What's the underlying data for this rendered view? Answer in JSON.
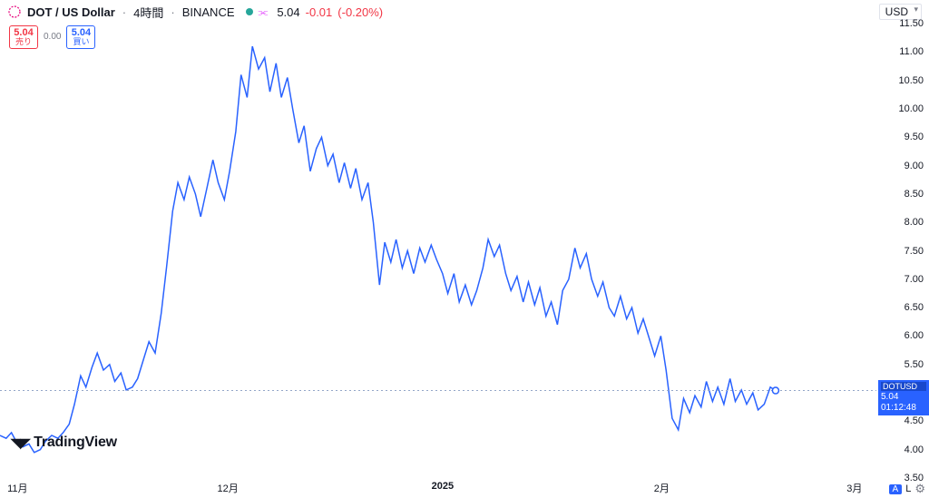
{
  "header": {
    "symbol_title": "DOT / US Dollar",
    "interval": "4時間",
    "exchange": "BINANCE",
    "status_dot_color": "#26a69a",
    "last": "5.04",
    "change": "-0.01",
    "change_pct": "(-0.20%)",
    "currency": "USD"
  },
  "badges": {
    "sell_price": "5.04",
    "sell_label": "売り",
    "spread": "0.00",
    "buy_price": "5.04",
    "buy_label": "買い"
  },
  "chart": {
    "type": "line",
    "line_color": "#2962ff",
    "background_color": "#ffffff",
    "dash_color": "#94a6c8",
    "y_min": 3.5,
    "y_max": 11.5,
    "y_tick_step": 0.5,
    "last_price": 5.04,
    "countdown": "01:12:48",
    "symbol_short": "DOTUSD",
    "marker_x": 0.885,
    "x_ticks": [
      {
        "label": "11月",
        "pos": 0.02,
        "bold": false
      },
      {
        "label": "12月",
        "pos": 0.26,
        "bold": false
      },
      {
        "label": "2025",
        "pos": 0.505,
        "bold": true
      },
      {
        "label": "2月",
        "pos": 0.755,
        "bold": false
      },
      {
        "label": "3月",
        "pos": 0.975,
        "bold": false
      }
    ],
    "data": [
      [
        0.0,
        4.25
      ],
      [
        0.007,
        4.2
      ],
      [
        0.013,
        4.3
      ],
      [
        0.02,
        4.1
      ],
      [
        0.026,
        4.05
      ],
      [
        0.033,
        4.1
      ],
      [
        0.039,
        3.95
      ],
      [
        0.046,
        4.0
      ],
      [
        0.052,
        4.15
      ],
      [
        0.059,
        4.25
      ],
      [
        0.066,
        4.2
      ],
      [
        0.072,
        4.3
      ],
      [
        0.079,
        4.45
      ],
      [
        0.085,
        4.8
      ],
      [
        0.092,
        5.3
      ],
      [
        0.098,
        5.1
      ],
      [
        0.105,
        5.45
      ],
      [
        0.111,
        5.7
      ],
      [
        0.118,
        5.4
      ],
      [
        0.125,
        5.5
      ],
      [
        0.131,
        5.2
      ],
      [
        0.138,
        5.35
      ],
      [
        0.144,
        5.05
      ],
      [
        0.151,
        5.1
      ],
      [
        0.157,
        5.25
      ],
      [
        0.164,
        5.6
      ],
      [
        0.17,
        5.9
      ],
      [
        0.177,
        5.7
      ],
      [
        0.184,
        6.4
      ],
      [
        0.19,
        7.2
      ],
      [
        0.197,
        8.2
      ],
      [
        0.203,
        8.7
      ],
      [
        0.21,
        8.4
      ],
      [
        0.216,
        8.8
      ],
      [
        0.223,
        8.5
      ],
      [
        0.229,
        8.1
      ],
      [
        0.236,
        8.6
      ],
      [
        0.243,
        9.1
      ],
      [
        0.249,
        8.7
      ],
      [
        0.256,
        8.4
      ],
      [
        0.262,
        8.9
      ],
      [
        0.269,
        9.6
      ],
      [
        0.275,
        10.6
      ],
      [
        0.282,
        10.2
      ],
      [
        0.288,
        11.1
      ],
      [
        0.295,
        10.7
      ],
      [
        0.302,
        10.9
      ],
      [
        0.308,
        10.3
      ],
      [
        0.315,
        10.8
      ],
      [
        0.321,
        10.2
      ],
      [
        0.328,
        10.55
      ],
      [
        0.334,
        10.0
      ],
      [
        0.341,
        9.4
      ],
      [
        0.347,
        9.7
      ],
      [
        0.354,
        8.9
      ],
      [
        0.361,
        9.3
      ],
      [
        0.367,
        9.5
      ],
      [
        0.374,
        9.0
      ],
      [
        0.38,
        9.2
      ],
      [
        0.387,
        8.7
      ],
      [
        0.393,
        9.05
      ],
      [
        0.4,
        8.6
      ],
      [
        0.406,
        8.95
      ],
      [
        0.413,
        8.4
      ],
      [
        0.42,
        8.7
      ],
      [
        0.426,
        8.0
      ],
      [
        0.433,
        6.9
      ],
      [
        0.439,
        7.65
      ],
      [
        0.446,
        7.3
      ],
      [
        0.452,
        7.7
      ],
      [
        0.459,
        7.2
      ],
      [
        0.465,
        7.5
      ],
      [
        0.472,
        7.1
      ],
      [
        0.479,
        7.55
      ],
      [
        0.485,
        7.3
      ],
      [
        0.492,
        7.6
      ],
      [
        0.498,
        7.35
      ],
      [
        0.505,
        7.1
      ],
      [
        0.511,
        6.75
      ],
      [
        0.518,
        7.1
      ],
      [
        0.524,
        6.6
      ],
      [
        0.531,
        6.9
      ],
      [
        0.538,
        6.55
      ],
      [
        0.544,
        6.8
      ],
      [
        0.551,
        7.2
      ],
      [
        0.557,
        7.7
      ],
      [
        0.564,
        7.4
      ],
      [
        0.57,
        7.6
      ],
      [
        0.577,
        7.1
      ],
      [
        0.583,
        6.8
      ],
      [
        0.59,
        7.05
      ],
      [
        0.597,
        6.6
      ],
      [
        0.603,
        6.95
      ],
      [
        0.61,
        6.55
      ],
      [
        0.616,
        6.85
      ],
      [
        0.623,
        6.35
      ],
      [
        0.629,
        6.6
      ],
      [
        0.636,
        6.2
      ],
      [
        0.642,
        6.8
      ],
      [
        0.649,
        7.0
      ],
      [
        0.656,
        7.55
      ],
      [
        0.662,
        7.2
      ],
      [
        0.669,
        7.45
      ],
      [
        0.675,
        7.0
      ],
      [
        0.682,
        6.7
      ],
      [
        0.688,
        6.95
      ],
      [
        0.695,
        6.5
      ],
      [
        0.701,
        6.35
      ],
      [
        0.708,
        6.7
      ],
      [
        0.715,
        6.3
      ],
      [
        0.721,
        6.5
      ],
      [
        0.728,
        6.05
      ],
      [
        0.734,
        6.3
      ],
      [
        0.741,
        5.95
      ],
      [
        0.747,
        5.65
      ],
      [
        0.754,
        6.0
      ],
      [
        0.76,
        5.4
      ],
      [
        0.767,
        4.55
      ],
      [
        0.774,
        4.35
      ],
      [
        0.78,
        4.9
      ],
      [
        0.787,
        4.65
      ],
      [
        0.793,
        4.95
      ],
      [
        0.8,
        4.75
      ],
      [
        0.806,
        5.2
      ],
      [
        0.813,
        4.85
      ],
      [
        0.819,
        5.1
      ],
      [
        0.826,
        4.8
      ],
      [
        0.833,
        5.25
      ],
      [
        0.839,
        4.85
      ],
      [
        0.846,
        5.05
      ],
      [
        0.852,
        4.8
      ],
      [
        0.859,
        5.0
      ],
      [
        0.865,
        4.7
      ],
      [
        0.872,
        4.8
      ],
      [
        0.879,
        5.1
      ],
      [
        0.885,
        5.04
      ]
    ]
  },
  "footer": {
    "brand": "TradingView",
    "auto_badge": "A",
    "log_badge": "L"
  }
}
